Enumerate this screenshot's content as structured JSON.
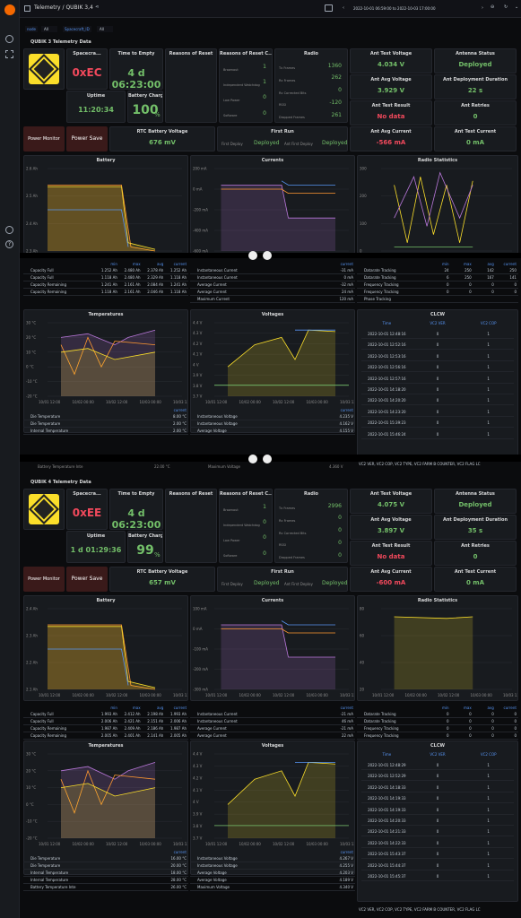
{
  "topbar": {
    "title": "Telemetry / QUBIK 3,4",
    "timerange": "2022-10-01 06:59:00 to 2022-10-03 17:00:00"
  },
  "vars": {
    "node_label": "node",
    "node_value": "All",
    "sc_label": "Spacecraft_ID",
    "sc_value": "All"
  },
  "sections": [
    {
      "title": "QUBIK 3 Telemetry Data",
      "spacecraft_label": "Spacecra...",
      "spacecraft_value": "0xEC",
      "tte_label": "Time to Empty",
      "tte_value": "4 d 06:23:00",
      "uptime_label": "Uptime",
      "uptime_value": "11:20:34",
      "charge_label": "Battery Charge",
      "charge_value": "100",
      "charge_unit": "%",
      "ror_label": "Reasons of Reset",
      "rorc_label": "Reasons of Reset C...",
      "rorc_items": [
        {
          "n": "Brownout",
          "v": "1"
        },
        {
          "n": "Independent Watchdog",
          "v": "1"
        },
        {
          "n": "Low Power",
          "v": "0"
        },
        {
          "n": "Software",
          "v": "0"
        }
      ],
      "radio_label": "Radio",
      "radio_items": [
        {
          "n": "Tx Frames",
          "v": "1360"
        },
        {
          "n": "Rx Frames",
          "v": "262"
        },
        {
          "n": "Rx Corrected Bits",
          "v": "0"
        },
        {
          "n": "RSSI",
          "v": "-120"
        },
        {
          "n": "Dropped Frames",
          "v": "261"
        }
      ],
      "atv_label": "Ant Test Voltage",
      "atv_value": "4.034 V",
      "as_label": "Antenna Status",
      "as_value": "Deployed",
      "aav_label": "Ant Avg Voltage",
      "aav_value": "3.929 V",
      "adt_label": "Ant Deployment Duration",
      "adt_value": "22 s",
      "atr_label": "Ant Test Result",
      "atr_value": "No data",
      "ar_label": "Ant Retries",
      "ar_value": "0",
      "pm_label": "Power Monitor",
      "ps_label": "Power Save",
      "rtc_label": "RTC Battery Voltage",
      "rtc_value": "676 mV",
      "fr_label": "First Run",
      "fd_label": "First Deploy",
      "fd_value": "Deployed",
      "afd_label": "Ant First Deploy",
      "afd_value": "Deployed",
      "aac_label": "Ant Avg Current",
      "aac_value": "-566 mA",
      "atc_label": "Ant Test Current",
      "atc_value": "0 mA",
      "battery_title": "Battery",
      "currents_title": "Currents",
      "radiostats_title": "Radio Statistics",
      "batt_y": [
        "2.6 Ah",
        "2.5 Ah",
        "2.4 Ah",
        "2.3 Ah"
      ],
      "cur_y": [
        "200 mA",
        "0 mA",
        "-200 mA",
        "-400 mA",
        "-600 mA"
      ],
      "rs_y": [
        "300",
        "200",
        "100",
        "0"
      ],
      "batt_tbl": {
        "head": [
          "min",
          "max",
          "avg",
          "current"
        ],
        "rows": [
          [
            "Capacity Full",
            "1.252 Ah",
            "2.480 Ah",
            "2.378 Ah",
            "1.252 Ah"
          ],
          [
            "Capacity Full",
            "1.118 Ah",
            "2.480 Ah",
            "2.329 Ah",
            "1.118 Ah"
          ],
          [
            "Capacity Remaining",
            "1.241 Ah",
            "2.161 Ah",
            "2.084 Ah",
            "1.241 Ah"
          ],
          [
            "Capacity Remaining",
            "1.118 Ah",
            "2.161 Ah",
            "2.046 Ah",
            "1.118 Ah"
          ]
        ]
      },
      "cur_tbl": {
        "head": [
          "current"
        ],
        "rows": [
          [
            "Instantaneous Current",
            "-31 mA"
          ],
          [
            "Instantaneous Current",
            "0 mA"
          ],
          [
            "Average Current",
            "-32 mA"
          ],
          [
            "Average Current",
            "24 mA"
          ],
          [
            "Maximum Current",
            "120 mA"
          ]
        ]
      },
      "rs_tbl": {
        "head": [
          "min",
          "max",
          "avg",
          "current"
        ],
        "rows": [
          [
            "Datarate Tracking",
            "24",
            "250",
            "142",
            "250"
          ],
          [
            "Datarate Tracking",
            "6",
            "250",
            "167",
            "141"
          ],
          [
            "Frequency Tracking",
            "0",
            "0",
            "0",
            "0"
          ],
          [
            "Frequency Tracking",
            "0",
            "0",
            "0",
            "0"
          ],
          [
            "Phase Tracking",
            "",
            "",
            "",
            ""
          ]
        ]
      },
      "temp_title": "Temperatures",
      "temp_y": [
        "30 °C",
        "20 °C",
        "10 °C",
        "0 °C",
        "-10 °C",
        "-20 °C"
      ],
      "volt_title": "Voltages",
      "volt_y": [
        "4.4 V",
        "4.3 V",
        "4.2 V",
        "4.1 V",
        "4 V",
        "3.9 V",
        "3.8 V",
        "3.7 V"
      ],
      "x_ticks": [
        "10/01 12:00",
        "10/02 00:00",
        "10/02 12:00",
        "10/03 00:00",
        "10/03 12:00"
      ],
      "temp_tbl": {
        "head": [
          "current"
        ],
        "rows": [
          [
            "Die Temperature",
            "8.00 °C"
          ],
          [
            "Die Temperature",
            "2.00 °C"
          ],
          [
            "Internal Temperature",
            "2.00 °C"
          ]
        ]
      },
      "volt_tbl": {
        "head": [
          "current"
        ],
        "rows": [
          [
            "Instantaneous Voltage",
            "4.235 V"
          ],
          [
            "Instantaneous Voltage",
            "4.162 V"
          ],
          [
            "Average Voltage",
            "4.155 V"
          ]
        ]
      },
      "clcw_title": "CLCW",
      "clcw_head": [
        "Time",
        "VC2 VER",
        "VC2 COP"
      ],
      "clcw_rows": [
        [
          "2022-10-01 12:48:16",
          "0",
          "1"
        ],
        [
          "2022-10-01 12:52:16",
          "0",
          "1"
        ],
        [
          "2022-10-01 12:53:16",
          "0",
          "1"
        ],
        [
          "2022-10-01 12:56:16",
          "0",
          "1"
        ],
        [
          "2022-10-01 12:57:16",
          "0",
          "1"
        ],
        [
          "2022-10-01 14:18:20",
          "0",
          "1"
        ],
        [
          "2022-10-01 14:20:20",
          "0",
          "1"
        ],
        [
          "2022-10-01 14:23:20",
          "0",
          "1"
        ],
        [
          "2022-10-01 15:39:23",
          "0",
          "1"
        ],
        [
          "2022-10-01 15:46:24",
          "0",
          "1"
        ]
      ],
      "clcw_footer": "VC2 VER, VC2 COP, VC2 TYPE, VC2 FARM B COUNTER, VC2 FLAG LC",
      "bti_label": "Battery Temperature Inte",
      "bti_value": "22.00 °C",
      "mv_label": "Maximum Voltage",
      "mv_value": "4.360 V"
    },
    {
      "title": "QUBIK 4 Telemetry Data",
      "spacecraft_label": "Spacecra...",
      "spacecraft_value": "0xEE",
      "tte_label": "Time to Empty",
      "tte_value": "4 d 06:23:00",
      "uptime_label": "Uptime",
      "uptime_value": "1 d 01:29:36",
      "charge_label": "Battery Charge",
      "charge_value": "99",
      "charge_unit": "%",
      "ror_label": "Reasons of Reset",
      "rorc_label": "Reasons of Reset C...",
      "rorc_items": [
        {
          "n": "Brownout",
          "v": "1"
        },
        {
          "n": "Independent Watchdog",
          "v": "0"
        },
        {
          "n": "Low Power",
          "v": "0"
        },
        {
          "n": "Software",
          "v": "0"
        }
      ],
      "radio_label": "Radio",
      "radio_items": [
        {
          "n": "Tx Frames",
          "v": "2996"
        },
        {
          "n": "Rx Frames",
          "v": "0"
        },
        {
          "n": "Rx Corrected Bits",
          "v": "0"
        },
        {
          "n": "RSSI",
          "v": "0"
        },
        {
          "n": "Dropped Frames",
          "v": "0"
        }
      ],
      "atv_label": "Ant Test Voltage",
      "atv_value": "4.075 V",
      "as_label": "Antenna Status",
      "as_value": "Deployed",
      "aav_label": "Ant Avg Voltage",
      "aav_value": "3.897 V",
      "adt_label": "Ant Deployment Duration",
      "adt_value": "35 s",
      "atr_label": "Ant Test Result",
      "atr_value": "No data",
      "ar_label": "Ant Retries",
      "ar_value": "0",
      "pm_label": "Power Monitor",
      "ps_label": "Power Save",
      "rtc_label": "RTC Battery Voltage",
      "rtc_value": "657 mV",
      "fr_label": "First Run",
      "fd_label": "First Deploy",
      "fd_value": "Deployed",
      "afd_label": "Ant First Deploy",
      "afd_value": "Deployed",
      "aac_label": "Ant Avg Current",
      "aac_value": "-600 mA",
      "atc_label": "Ant Test Current",
      "atc_value": "0 mA",
      "battery_title": "Battery",
      "currents_title": "Currents",
      "radiostats_title": "Radio Statistics",
      "batt_y": [
        "2.4 Ah",
        "2.3 Ah",
        "2.2 Ah",
        "2.1 Ah"
      ],
      "cur_y": [
        "100 mA",
        "0 mA",
        "-100 mA",
        "-200 mA",
        "-300 mA"
      ],
      "rs_y": [
        "80",
        "60",
        "40",
        "20"
      ],
      "batt_tbl": {
        "head": [
          "min",
          "max",
          "avg",
          "current"
        ],
        "rows": [
          [
            "Capacity Full",
            "1.993 Ah",
            "2.412 Ah",
            "2.198 Ah",
            "1.993 Ah"
          ],
          [
            "Capacity Full",
            "2.006 Ah",
            "2.421 Ah",
            "2.151 Ah",
            "2.006 Ah"
          ],
          [
            "Capacity Remaining",
            "1.987 Ah",
            "2.409 Ah",
            "2.186 Ah",
            "1.987 Ah"
          ],
          [
            "Capacity Remaining",
            "2.005 Ah",
            "2.401 Ah",
            "2.141 Ah",
            "2.005 Ah"
          ]
        ]
      },
      "cur_tbl": {
        "head": [
          "current"
        ],
        "rows": [
          [
            "Instantaneous Current",
            "-21 mA"
          ],
          [
            "Instantaneous Current",
            "46 mA"
          ],
          [
            "Average Current",
            "-21 mA"
          ],
          [
            "Average Current",
            "22 mA"
          ],
          [
            "Maximum Current",
            "215 mA"
          ]
        ]
      },
      "rs_tbl": {
        "head": [
          "min",
          "max",
          "avg",
          "current"
        ],
        "rows": [
          [
            "Datarate Tracking",
            "0",
            "0",
            "0",
            "0"
          ],
          [
            "Datarate Tracking",
            "0",
            "0",
            "0",
            "0"
          ],
          [
            "Frequency Tracking",
            "0",
            "0",
            "0",
            "0"
          ],
          [
            "Frequency Tracking",
            "0",
            "0",
            "0",
            "0"
          ],
          [
            "Phase Tracking",
            "",
            "",
            "",
            ""
          ]
        ]
      },
      "temp_title": "Temperatures",
      "temp_y": [
        "30 °C",
        "20 °C",
        "10 °C",
        "0 °C",
        "-10 °C",
        "-20 °C"
      ],
      "volt_title": "Voltages",
      "volt_y": [
        "4.4 V",
        "4.3 V",
        "4.2 V",
        "4.1 V",
        "4 V",
        "3.9 V",
        "3.8 V",
        "3.7 V"
      ],
      "x_ticks": [
        "10/01 12:00",
        "10/02 00:00",
        "10/02 12:00",
        "10/03 00:00",
        "10/03 12:00"
      ],
      "temp_tbl": {
        "head": [
          "current"
        ],
        "rows": [
          [
            "Die Temperature",
            "16.00 °C"
          ],
          [
            "Die Temperature",
            "20.00 °C"
          ],
          [
            "Internal Temperature",
            "18.00 °C"
          ],
          [
            "Internal Temperature",
            "28.00 °C"
          ],
          [
            "Battery Temperature Inte",
            "26.00 °C"
          ]
        ]
      },
      "volt_tbl": {
        "head": [
          "current"
        ],
        "rows": [
          [
            "Instantaneous Voltage",
            "4.267 V"
          ],
          [
            "Instantaneous Voltage",
            "4.255 V"
          ],
          [
            "Average Voltage",
            "4.203 V"
          ],
          [
            "Average Voltage",
            "4.189 V"
          ],
          [
            "Maximum Voltage",
            "4.340 V"
          ]
        ]
      },
      "clcw_title": "CLCW",
      "clcw_head": [
        "Time",
        "VC2 VER",
        "VC2 COP"
      ],
      "clcw_rows": [
        [
          "2022-10-01 12:48:29",
          "0",
          "1"
        ],
        [
          "2022-10-01 12:52:29",
          "0",
          "1"
        ],
        [
          "2022-10-01 14:18:33",
          "0",
          "1"
        ],
        [
          "2022-10-01 14:19:33",
          "0",
          "1"
        ],
        [
          "2022-10-01 14:19:33",
          "0",
          "1"
        ],
        [
          "2022-10-01 14:20:33",
          "0",
          "1"
        ],
        [
          "2022-10-01 14:21:33",
          "0",
          "1"
        ],
        [
          "2022-10-01 14:22:33",
          "0",
          "1"
        ],
        [
          "2022-10-01 15:43:37",
          "0",
          "1"
        ],
        [
          "2022-10-01 15:44:37",
          "0",
          "1"
        ],
        [
          "2022-10-01 15:45:37",
          "0",
          "1"
        ]
      ],
      "clcw_footer": "VC2 VER, VC2 COP, VC2 TYPE, VC2 FARM B COUNTER, VC2 FLAG LC"
    }
  ],
  "colors": {
    "green": "#73bf69",
    "red": "#f2495c",
    "blue": "#5794f2",
    "yellow": "#fade2a",
    "orange": "#ff9830",
    "purple": "#b877d9"
  }
}
